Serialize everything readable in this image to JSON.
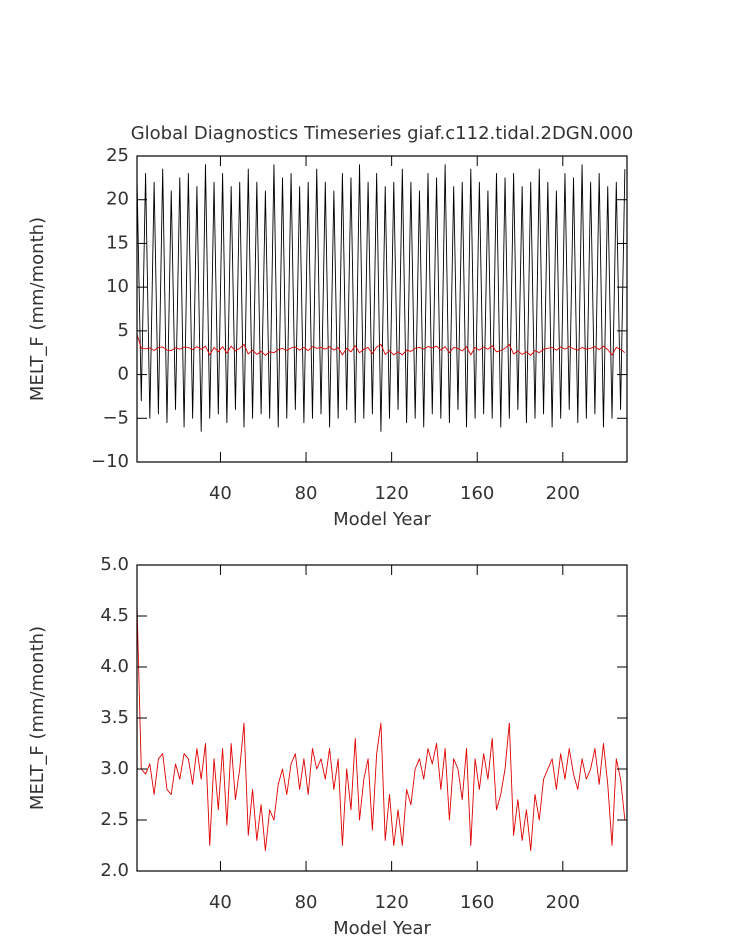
{
  "chart_data": [
    {
      "type": "line",
      "title": "Global Diagnostics Timeseries giaf.c112.tidal.2DGN.000",
      "xlabel": "Model Year",
      "ylabel": "MELT_F (mm/month)",
      "x": [
        1,
        3,
        5,
        7,
        9,
        11,
        13,
        15,
        17,
        19,
        21,
        23,
        25,
        27,
        29,
        31,
        33,
        35,
        37,
        39,
        41,
        43,
        45,
        47,
        49,
        51,
        53,
        55,
        57,
        59,
        61,
        63,
        65,
        67,
        69,
        71,
        73,
        75,
        77,
        79,
        81,
        83,
        85,
        87,
        89,
        91,
        93,
        95,
        97,
        99,
        101,
        103,
        105,
        107,
        109,
        111,
        113,
        115,
        117,
        119,
        121,
        123,
        125,
        127,
        129,
        131,
        133,
        135,
        137,
        139,
        141,
        143,
        145,
        147,
        149,
        151,
        153,
        155,
        157,
        159,
        161,
        163,
        165,
        167,
        169,
        171,
        173,
        175,
        177,
        179,
        181,
        183,
        185,
        187,
        189,
        191,
        193,
        195,
        197,
        199,
        201,
        203,
        205,
        207,
        209,
        211,
        213,
        215,
        217,
        219,
        221,
        223,
        225,
        227,
        229
      ],
      "xlim": [
        1,
        230
      ],
      "xticks": [
        40,
        80,
        120,
        160,
        200
      ],
      "ylim": [
        -10,
        25
      ],
      "yticks": [
        {
          "value": -10,
          "label": "−10"
        },
        {
          "value": -5,
          "label": "−5"
        },
        0,
        5,
        10,
        15,
        20,
        25
      ],
      "series": [
        {
          "color": "#000000",
          "values": [
            22.5,
            -3,
            23,
            -5,
            22,
            -4.5,
            23.5,
            -5.5,
            21,
            -4,
            22.5,
            -6,
            23,
            -5,
            21.5,
            -6.5,
            24,
            -5,
            22,
            -4.5,
            23,
            -5.5,
            21.5,
            -4,
            22,
            -6,
            23.5,
            -5,
            22,
            -4.5,
            21,
            -5,
            24,
            -6,
            22.5,
            -5,
            23,
            -4,
            21.5,
            -5.5,
            22,
            -5,
            23.5,
            -4.5,
            22,
            -6,
            21,
            -5,
            23,
            -4,
            22.5,
            -5.5,
            24,
            -5,
            22,
            -4.5,
            23,
            -6.5,
            21.5,
            -5,
            22,
            -4,
            23.5,
            -5.5,
            22,
            -5,
            21,
            -6,
            23,
            -4.5,
            22.5,
            -5,
            24,
            -5.5,
            21.5,
            -4,
            22,
            -6,
            23.5,
            -5,
            22,
            -4.5,
            21,
            -5,
            23,
            -6,
            22.5,
            -5,
            23,
            -4,
            21.5,
            -5.5,
            22,
            -5,
            23.5,
            -4.5,
            22,
            -6,
            21,
            -5,
            23,
            -4,
            22.5,
            -5.5,
            24,
            -5,
            22,
            -4.5,
            23,
            -6,
            21.5,
            -5,
            22,
            -4,
            23.5
          ]
        },
        {
          "color": "#e00000",
          "values": [
            4.6,
            3.0,
            2.95,
            3.05,
            2.75,
            3.1,
            3.15,
            2.8,
            2.75,
            3.05,
            2.9,
            3.15,
            3.1,
            2.85,
            3.2,
            2.9,
            3.25,
            2.25,
            3.1,
            2.6,
            3.2,
            2.45,
            3.25,
            2.7,
            3.0,
            3.45,
            2.35,
            2.8,
            2.3,
            2.65,
            2.2,
            2.6,
            2.5,
            2.85,
            3.0,
            2.75,
            3.05,
            3.15,
            2.8,
            3.1,
            2.75,
            3.2,
            3.0,
            3.1,
            2.9,
            3.2,
            2.8,
            3.1,
            2.25,
            3.0,
            2.6,
            3.3,
            2.5,
            2.9,
            3.1,
            2.4,
            3.15,
            3.45,
            2.3,
            2.75,
            2.25,
            2.6,
            2.25,
            2.8,
            2.65,
            3.0,
            3.1,
            2.9,
            3.2,
            3.05,
            3.25,
            2.8,
            3.2,
            2.5,
            3.1,
            3.0,
            2.7,
            3.2,
            2.25,
            3.1,
            2.8,
            3.15,
            2.9,
            3.3,
            2.6,
            2.75,
            3.0,
            3.45,
            2.35,
            2.7,
            2.3,
            2.6,
            2.2,
            2.75,
            2.5,
            2.9,
            3.0,
            3.1,
            2.8,
            3.15,
            2.9,
            3.2,
            2.95,
            2.8,
            3.1,
            2.9,
            3.0,
            3.2,
            2.85,
            3.25,
            2.85,
            2.25,
            3.1,
            2.9,
            2.5
          ]
        }
      ]
    },
    {
      "type": "line",
      "xlabel": "Model Year",
      "ylabel": "MELT_F (mm/month)",
      "x": [
        1,
        3,
        5,
        7,
        9,
        11,
        13,
        15,
        17,
        19,
        21,
        23,
        25,
        27,
        29,
        31,
        33,
        35,
        37,
        39,
        41,
        43,
        45,
        47,
        49,
        51,
        53,
        55,
        57,
        59,
        61,
        63,
        65,
        67,
        69,
        71,
        73,
        75,
        77,
        79,
        81,
        83,
        85,
        87,
        89,
        91,
        93,
        95,
        97,
        99,
        101,
        103,
        105,
        107,
        109,
        111,
        113,
        115,
        117,
        119,
        121,
        123,
        125,
        127,
        129,
        131,
        133,
        135,
        137,
        139,
        141,
        143,
        145,
        147,
        149,
        151,
        153,
        155,
        157,
        159,
        161,
        163,
        165,
        167,
        169,
        171,
        173,
        175,
        177,
        179,
        181,
        183,
        185,
        187,
        189,
        191,
        193,
        195,
        197,
        199,
        201,
        203,
        205,
        207,
        209,
        211,
        213,
        215,
        217,
        219,
        221,
        223,
        225,
        227,
        229
      ],
      "xlim": [
        1,
        230
      ],
      "xticks": [
        40,
        80,
        120,
        160,
        200
      ],
      "ylim": [
        2,
        5
      ],
      "yticks": [
        {
          "value": 2,
          "label": "2.0"
        },
        2.5,
        {
          "value": 3,
          "label": "3.0"
        },
        3.5,
        {
          "value": 4,
          "label": "4.0"
        },
        4.5,
        {
          "value": 5,
          "label": "5.0"
        }
      ],
      "series": [
        {
          "color": "#e00000",
          "values": [
            4.6,
            3.0,
            2.95,
            3.05,
            2.75,
            3.1,
            3.15,
            2.8,
            2.75,
            3.05,
            2.9,
            3.15,
            3.1,
            2.85,
            3.2,
            2.9,
            3.25,
            2.25,
            3.1,
            2.6,
            3.2,
            2.45,
            3.25,
            2.7,
            3.0,
            3.45,
            2.35,
            2.8,
            2.3,
            2.65,
            2.2,
            2.6,
            2.5,
            2.85,
            3.0,
            2.75,
            3.05,
            3.15,
            2.8,
            3.1,
            2.75,
            3.2,
            3.0,
            3.1,
            2.9,
            3.2,
            2.8,
            3.1,
            2.25,
            3.0,
            2.6,
            3.3,
            2.5,
            2.9,
            3.1,
            2.4,
            3.15,
            3.45,
            2.3,
            2.75,
            2.25,
            2.6,
            2.25,
            2.8,
            2.65,
            3.0,
            3.1,
            2.9,
            3.2,
            3.05,
            3.25,
            2.8,
            3.2,
            2.5,
            3.1,
            3.0,
            2.7,
            3.2,
            2.25,
            3.1,
            2.8,
            3.15,
            2.9,
            3.3,
            2.6,
            2.75,
            3.0,
            3.45,
            2.35,
            2.7,
            2.3,
            2.6,
            2.2,
            2.75,
            2.5,
            2.9,
            3.0,
            3.1,
            2.8,
            3.15,
            2.9,
            3.2,
            2.95,
            2.8,
            3.1,
            2.9,
            3.0,
            3.2,
            2.85,
            3.25,
            2.85,
            2.25,
            3.1,
            2.9,
            2.5
          ]
        }
      ]
    }
  ]
}
